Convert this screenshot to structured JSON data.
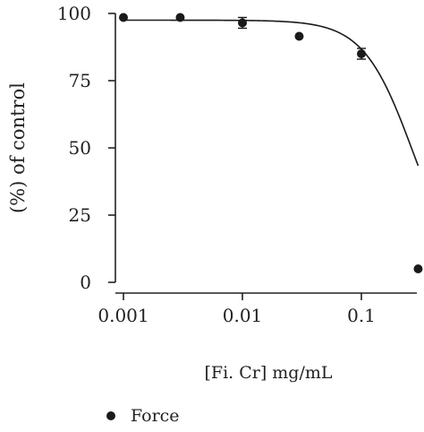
{
  "chart_data": {
    "type": "scatter",
    "title": "",
    "xlabel": "[Fi. Cr] mg/mL",
    "ylabel": "(%) of control",
    "xscale": "log",
    "xlim": [
      0.001,
      0.3
    ],
    "ylim": [
      0,
      100
    ],
    "xticks": [
      0.001,
      0.01,
      0.1
    ],
    "xtick_labels": [
      "0.001",
      "0.01",
      "0.1"
    ],
    "yticks": [
      0,
      25,
      50,
      75,
      100
    ],
    "ytick_labels": [
      "0",
      "25",
      "50",
      "75",
      "100"
    ],
    "grid": false,
    "legend_position": "bottom-left",
    "series": [
      {
        "name": "Force",
        "color": "#1a1a1a",
        "marker": "circle",
        "x": [
          0.001,
          0.003,
          0.01,
          0.03,
          0.1,
          0.3
        ],
        "y": [
          98.5,
          98.5,
          96.5,
          91.5,
          85,
          5
        ],
        "error": [
          0,
          0,
          2,
          0,
          2,
          0
        ],
        "fit_curve": {
          "model": "logistic",
          "top": 97.5,
          "bottom": 0,
          "ic50": 0.27,
          "hill": 2.1
        }
      }
    ]
  }
}
